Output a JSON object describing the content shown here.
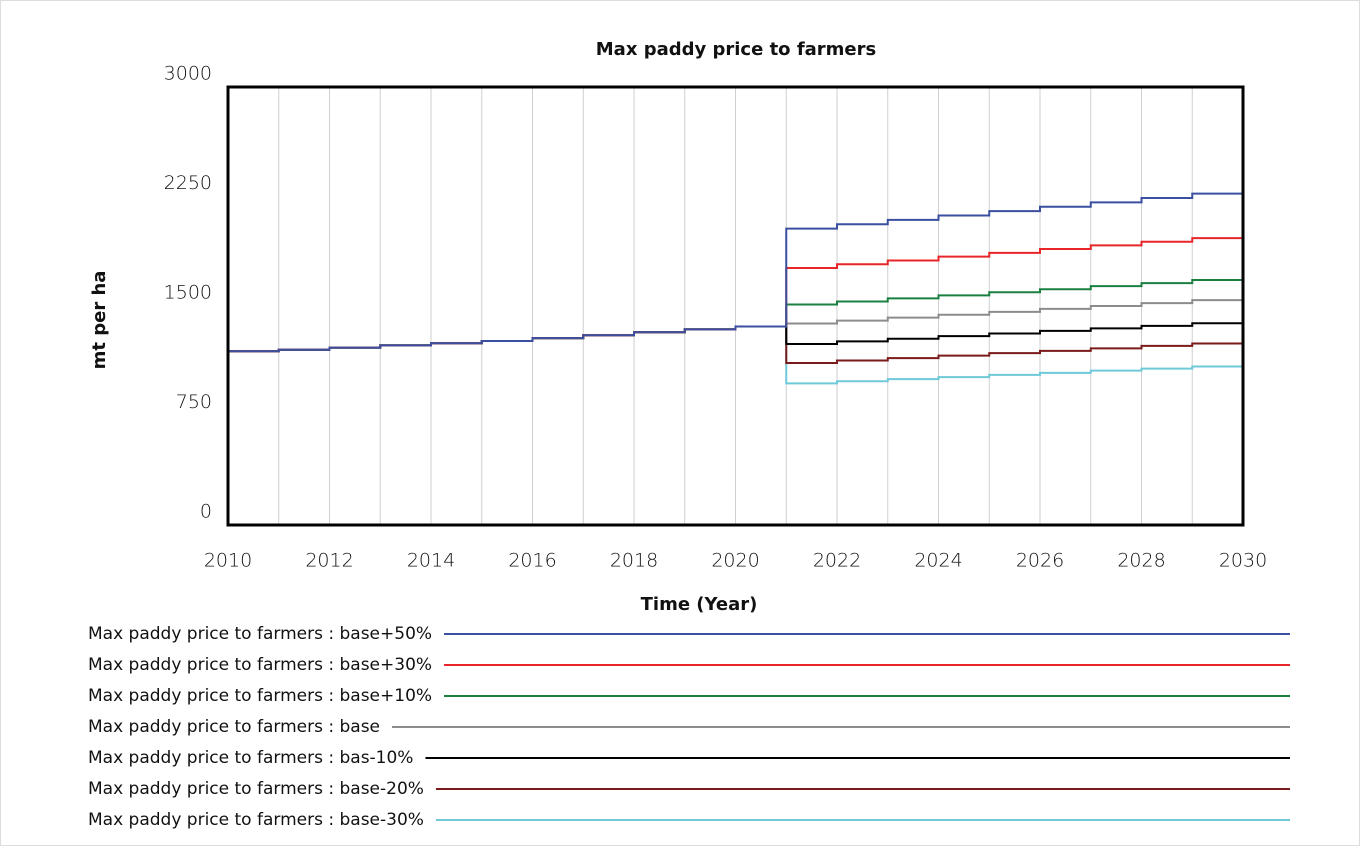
{
  "chart_data": {
    "type": "line",
    "step": true,
    "title": "Max paddy price to farmers",
    "x_label": "Time (Year)",
    "y_label": "mt per ha",
    "x": [
      2010,
      2011,
      2012,
      2013,
      2014,
      2015,
      2016,
      2017,
      2018,
      2019,
      2020,
      2021,
      2022,
      2023,
      2024,
      2025,
      2026,
      2027,
      2028,
      2029,
      2030
    ],
    "xlim": [
      2010,
      2030
    ],
    "xticks": [
      2010,
      2012,
      2014,
      2016,
      2018,
      2020,
      2022,
      2024,
      2026,
      2028,
      2030
    ],
    "ylim": [
      0,
      3000
    ],
    "yticks": [
      0,
      750,
      1500,
      2250,
      3000
    ],
    "grid": true,
    "series": [
      {
        "name": "Max paddy price to farmers : base-30%",
        "color": "#6ec9d8",
        "values": [
          1190,
          1200,
          1215,
          1230,
          1245,
          1260,
          1280,
          1300,
          1320,
          1340,
          1360,
          970,
          985,
          999,
          1013,
          1028,
          1042,
          1057,
          1071,
          1086,
          1100
        ]
      },
      {
        "name": "Max paddy price to farmers : base-20%",
        "color": "#7a1a1a",
        "values": [
          1190,
          1200,
          1215,
          1230,
          1245,
          1260,
          1280,
          1300,
          1320,
          1340,
          1360,
          1110,
          1127,
          1143,
          1160,
          1177,
          1193,
          1210,
          1227,
          1243,
          1260
        ]
      },
      {
        "name": "Max paddy price to farmers : bas-10%",
        "color": "#000000",
        "values": [
          1190,
          1200,
          1215,
          1230,
          1245,
          1260,
          1280,
          1300,
          1320,
          1340,
          1360,
          1240,
          1258,
          1276,
          1294,
          1312,
          1330,
          1347,
          1364,
          1382,
          1400
        ]
      },
      {
        "name": "Max paddy price to farmers : base",
        "color": "#8c8c8c",
        "values": [
          1190,
          1200,
          1215,
          1230,
          1245,
          1260,
          1280,
          1300,
          1320,
          1340,
          1360,
          1380,
          1400,
          1420,
          1440,
          1460,
          1480,
          1500,
          1520,
          1540,
          1560
        ]
      },
      {
        "name": "Max paddy price to farmers : base+10%",
        "color": "#1a8040",
        "values": [
          1190,
          1200,
          1215,
          1230,
          1245,
          1260,
          1280,
          1300,
          1320,
          1340,
          1360,
          1510,
          1531,
          1552,
          1573,
          1594,
          1615,
          1636,
          1657,
          1678,
          1700
        ]
      },
      {
        "name": "Max paddy price to farmers : base+30%",
        "color": "#e8262a",
        "values": [
          1190,
          1200,
          1215,
          1230,
          1245,
          1260,
          1280,
          1300,
          1320,
          1340,
          1360,
          1760,
          1786,
          1812,
          1838,
          1864,
          1890,
          1915,
          1940,
          1965,
          1990
        ]
      },
      {
        "name": "Max paddy price to farmers : base+50%",
        "color": "#3a4fa0",
        "values": [
          1190,
          1200,
          1215,
          1230,
          1245,
          1260,
          1280,
          1300,
          1320,
          1340,
          1360,
          2030,
          2060,
          2090,
          2120,
          2150,
          2180,
          2210,
          2240,
          2270,
          2300
        ]
      }
    ]
  }
}
